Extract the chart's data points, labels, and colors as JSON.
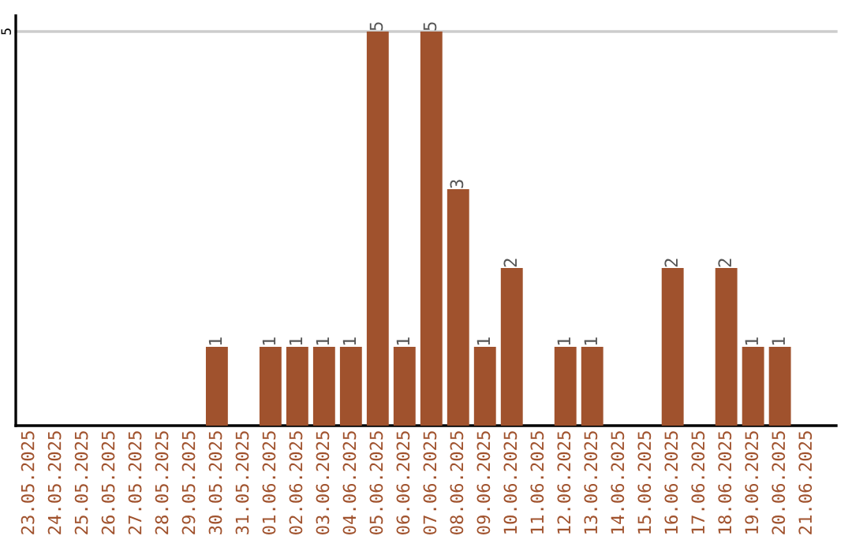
{
  "chart_data": {
    "type": "bar",
    "categories": [
      "23.05.2025",
      "24.05.2025",
      "25.05.2025",
      "26.05.2025",
      "27.05.2025",
      "28.05.2025",
      "29.05.2025",
      "30.05.2025",
      "31.05.2025",
      "01.06.2025",
      "02.06.2025",
      "03.06.2025",
      "04.06.2025",
      "05.06.2025",
      "06.06.2025",
      "07.06.2025",
      "08.06.2025",
      "09.06.2025",
      "10.06.2025",
      "11.06.2025",
      "12.06.2025",
      "13.06.2025",
      "14.06.2025",
      "15.06.2025",
      "16.06.2025",
      "17.06.2025",
      "18.06.2025",
      "19.06.2025",
      "20.06.2025",
      "21.06.2025"
    ],
    "values": [
      0,
      0,
      0,
      0,
      0,
      0,
      0,
      1,
      0,
      1,
      1,
      1,
      1,
      5,
      1,
      5,
      3,
      1,
      2,
      0,
      1,
      1,
      0,
      0,
      2,
      0,
      2,
      1,
      1,
      0
    ],
    "value_labels": [
      null,
      null,
      null,
      null,
      null,
      null,
      null,
      "1",
      null,
      "1",
      "1",
      "1",
      "1",
      "5",
      "1",
      "5",
      "3",
      "1",
      "2",
      null,
      "1",
      "1",
      null,
      null,
      "2",
      null,
      "2",
      "1",
      "1",
      null
    ],
    "color": "#a0522d",
    "ylim": [
      0,
      5.2
    ],
    "yticks": [
      5
    ],
    "grid": "y"
  }
}
